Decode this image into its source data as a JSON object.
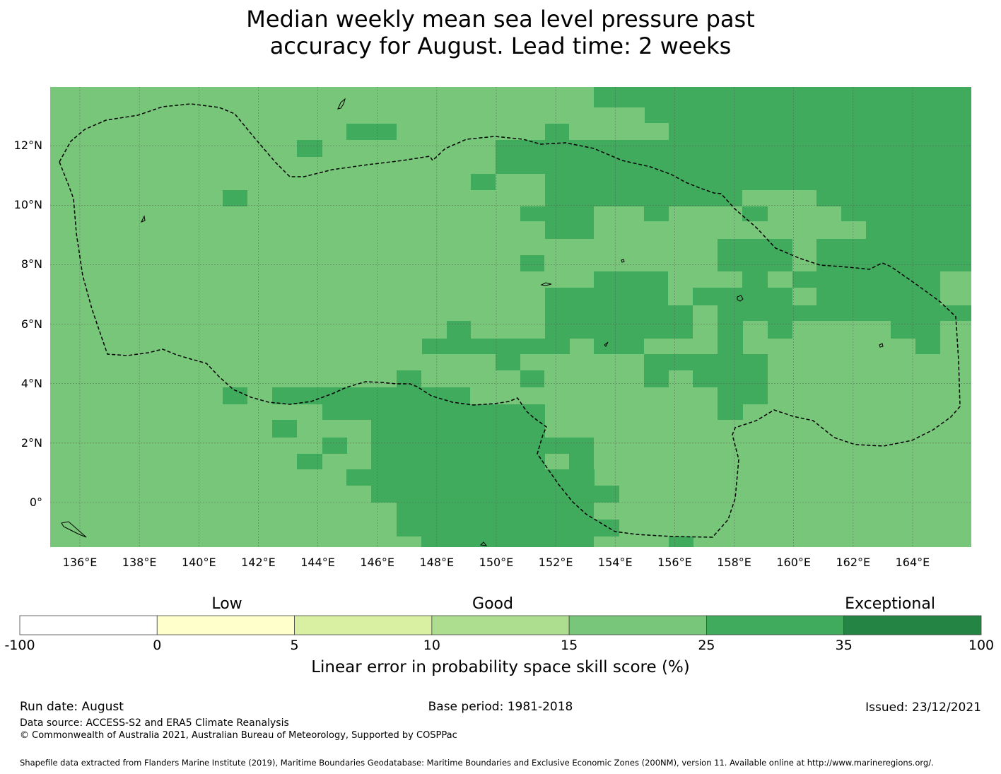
{
  "title": {
    "line1": "Median weekly mean sea level pressure past",
    "line2": "accuracy for August. Lead time: 2 weeks"
  },
  "map": {
    "lat_ticks": [
      "12°N",
      "10°N",
      "8°N",
      "6°N",
      "4°N",
      "2°N",
      "0°"
    ],
    "lon_ticks": [
      "136°E",
      "138°E",
      "140°E",
      "142°E",
      "144°E",
      "146°E",
      "148°E",
      "150°E",
      "152°E",
      "154°E",
      "156°E",
      "158°E",
      "160°E",
      "162°E",
      "164°E"
    ],
    "extent": {
      "lon_min": 135,
      "lon_max": 166,
      "lat_min": -1.5,
      "lat_max": 14
    },
    "base_skill_band": "15 to 25",
    "highlight_skill_band": "25 to 35",
    "colors": {
      "band_15_25": "#78c679",
      "band_25_35": "#41ab5d",
      "grid": "#555555",
      "boundary": "#000000"
    }
  },
  "colorbar": {
    "categories": [
      "Low",
      "Good",
      "Exceptional"
    ],
    "ticks": [
      "-100",
      "0",
      "5",
      "10",
      "15",
      "25",
      "35",
      "100"
    ],
    "colors": [
      "#ffffff",
      "#ffffcc",
      "#d9f0a3",
      "#addd8e",
      "#78c679",
      "#41ab5d",
      "#238443"
    ],
    "label": "Linear error in probability space skill score (%)"
  },
  "footer": {
    "run_date": "Run date: August",
    "base_period": "Base period: 1981-2018",
    "issued": "Issued: 23/12/2021",
    "data_source": "Data source: ACCESS-S2 and ERA5 Climate Reanalysis",
    "copyright": "© Commonwealth of Australia 2021, Australian Bureau of Meteorology, Supported by COSPPac",
    "shapefile": "Shapefile data extracted from Flanders Marine Institute (2019), Maritime Boundaries Geodatabase: Maritime Boundaries and Exclusive Economic Zones (200NM), version 11. Available online at http://www.marineregions.org/."
  }
}
